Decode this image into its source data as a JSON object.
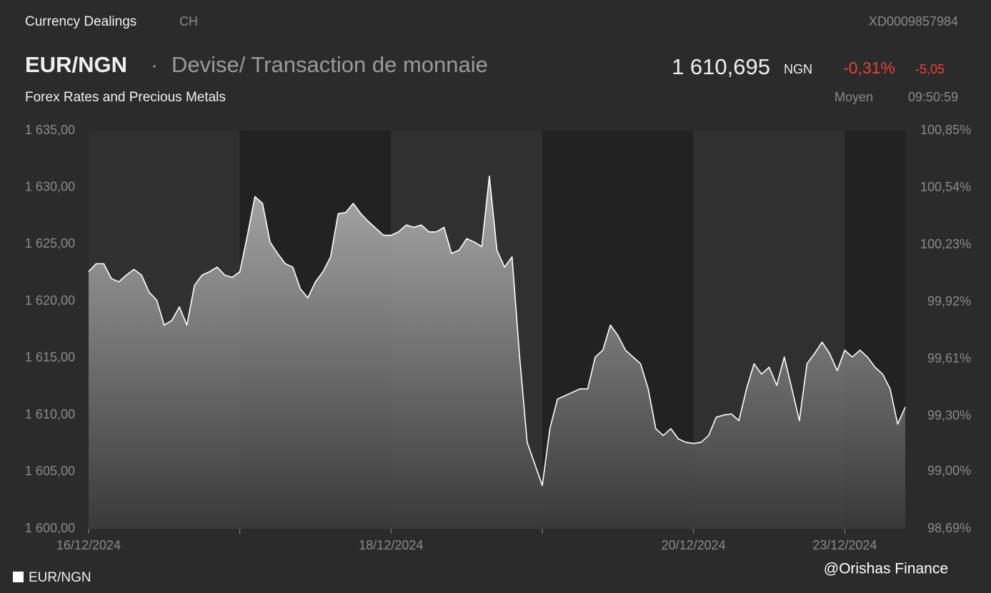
{
  "header": {
    "source": "Currency Dealings",
    "country": "CH",
    "isin": "XD0009857984",
    "pair": "EUR/NGN",
    "separator": "·",
    "description": "Devise/ Transaction de monnaie",
    "price": "1 610,695",
    "currency": "NGN",
    "change_pct": "-0,31%",
    "change_abs": "-5,05",
    "category": "Forex Rates and Precious Metals",
    "price_type": "Moyen",
    "time": "09:50:59"
  },
  "watermark": "@Orishas Finance",
  "chart_data": {
    "type": "area",
    "series": [
      {
        "name": "EUR/NGN",
        "color": "#ffffff",
        "values": [
          1622.6,
          1623.3,
          1623.3,
          1622.0,
          1621.7,
          1622.3,
          1622.8,
          1622.3,
          1620.8,
          1620.1,
          1617.9,
          1618.3,
          1619.5,
          1617.9,
          1621.4,
          1622.3,
          1622.6,
          1623.0,
          1622.3,
          1622.1,
          1622.6,
          1625.8,
          1629.2,
          1628.6,
          1625.2,
          1624.2,
          1623.3,
          1623.0,
          1621.1,
          1620.3,
          1621.7,
          1622.6,
          1623.9,
          1627.7,
          1627.8,
          1628.6,
          1627.7,
          1627.0,
          1626.4,
          1625.8,
          1625.8,
          1626.1,
          1626.7,
          1626.5,
          1626.7,
          1626.1,
          1626.1,
          1626.5,
          1624.2,
          1624.5,
          1625.5,
          1625.2,
          1624.8,
          1631.0,
          1624.5,
          1623.0,
          1623.9,
          1615.1,
          1607.6,
          1605.7,
          1603.8,
          1608.8,
          1611.4,
          1611.7,
          1612.0,
          1612.3,
          1612.3,
          1615.1,
          1615.7,
          1617.9,
          1617.0,
          1615.7,
          1615.1,
          1614.5,
          1612.3,
          1608.8,
          1608.2,
          1608.8,
          1607.9,
          1607.6,
          1607.5,
          1607.6,
          1608.2,
          1609.8,
          1610.0,
          1610.1,
          1609.5,
          1612.3,
          1614.5,
          1613.6,
          1614.2,
          1612.6,
          1615.1,
          1612.3,
          1609.5,
          1614.5,
          1615.4,
          1616.4,
          1615.4,
          1613.9,
          1615.7,
          1615.1,
          1615.7,
          1615.1,
          1614.2,
          1613.6,
          1612.3,
          1609.2,
          1610.7
        ]
      }
    ],
    "xlim": [
      0,
      108
    ],
    "xticks": [
      {
        "value": 0,
        "label": "16/12/2024"
      },
      {
        "value": 20,
        "label": null
      },
      {
        "value": 40,
        "label": "18/12/2024"
      },
      {
        "value": 60,
        "label": null
      },
      {
        "value": 80,
        "label": "20/12/2024"
      },
      {
        "value": 100,
        "label": "23/12/2024"
      }
    ],
    "ylim": [
      1600,
      1635
    ],
    "yticks": [
      {
        "value": 1600,
        "label": "1 600,00"
      },
      {
        "value": 1605,
        "label": "1 605,00"
      },
      {
        "value": 1610,
        "label": "1 610,00"
      },
      {
        "value": 1615,
        "label": "1 615,00"
      },
      {
        "value": 1620,
        "label": "1 620,00"
      },
      {
        "value": 1625,
        "label": "1 625,00"
      },
      {
        "value": 1630,
        "label": "1 630,00"
      },
      {
        "value": 1635,
        "label": "1 635,00"
      }
    ],
    "y2lim": [
      98.69,
      100.85
    ],
    "y2ticks": [
      {
        "value": 98.69,
        "label": "98,69%"
      },
      {
        "value": 99.0,
        "label": "99,00%"
      },
      {
        "value": 99.3,
        "label": "99,30%"
      },
      {
        "value": 99.61,
        "label": "99,61%"
      },
      {
        "value": 99.92,
        "label": "99,92%"
      },
      {
        "value": 100.23,
        "label": "100,23%"
      },
      {
        "value": 100.54,
        "label": "100,54%"
      },
      {
        "value": 100.85,
        "label": "100,85%"
      }
    ]
  }
}
